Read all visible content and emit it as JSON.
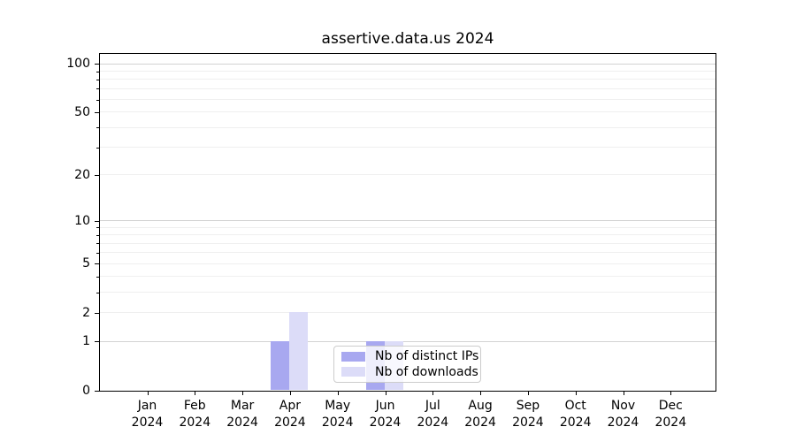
{
  "title": "assertive.data.us 2024",
  "chart_data": {
    "type": "bar",
    "title": "assertive.data.us 2024",
    "x_months": [
      "Jan",
      "Feb",
      "Mar",
      "Apr",
      "May",
      "Jun",
      "Jul",
      "Aug",
      "Sep",
      "Oct",
      "Nov",
      "Dec"
    ],
    "x_year": "2024",
    "series": [
      {
        "name": "Nb of distinct IPs",
        "color": "#a8a8f0",
        "values": [
          0,
          0,
          0,
          1,
          0,
          1,
          0,
          0,
          0,
          0,
          0,
          0
        ]
      },
      {
        "name": "Nb of downloads",
        "color": "#dcdcf8",
        "values": [
          0,
          0,
          0,
          2,
          0,
          1,
          0,
          0,
          0,
          0,
          0,
          0
        ]
      }
    ],
    "y_scale": "log1p",
    "ylim": [
      0,
      113
    ],
    "y_tick_labels": [
      0,
      1,
      2,
      5,
      10,
      20,
      50,
      100
    ],
    "y_major_gridlines": [
      1,
      10,
      100
    ],
    "y_minor_gridlines": [
      2,
      3,
      4,
      5,
      6,
      7,
      8,
      9,
      20,
      30,
      40,
      50,
      60,
      70,
      80,
      90
    ],
    "grid": true,
    "legend_position": "lower center",
    "xlabel": "",
    "ylabel": ""
  },
  "colors": {
    "background": "#ffffff",
    "axis": "#000000",
    "major_grid": "#d3d3d3",
    "minor_grid": "#efefef",
    "legend_border": "#cccccc",
    "bar_distinct_ips": "#a8a8f0",
    "bar_downloads": "#dcdcf8"
  }
}
